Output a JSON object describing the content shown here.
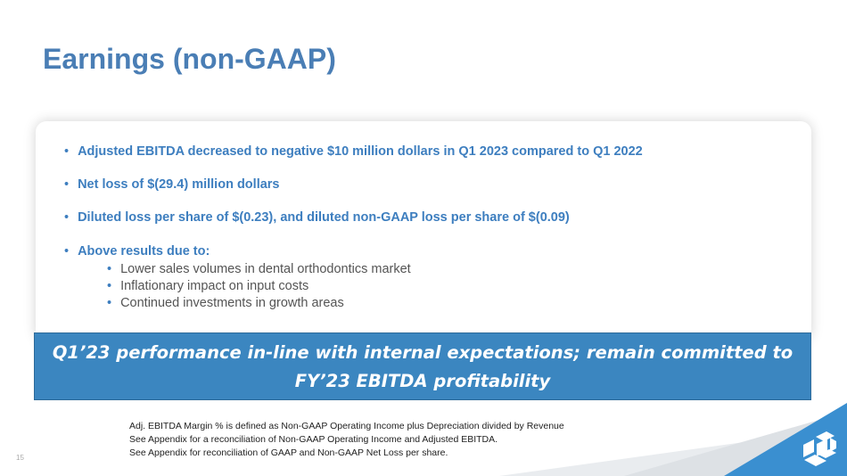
{
  "slide": {
    "title": "Earnings (non-GAAP)",
    "page_number": "15"
  },
  "bullets": [
    "Adjusted EBITDA decreased to negative $10 million dollars in Q1 2023 compared to Q1 2022",
    "Net loss of $(29.4) million dollars",
    "Diluted loss per share of $(0.23), and diluted non-GAAP loss per share of $(0.09)",
    "Above results due to:"
  ],
  "sub_bullets": [
    "Lower sales volumes in dental orthodontics market",
    "Inflationary impact on input costs",
    "Continued investments in growth areas"
  ],
  "banner": {
    "line1": "Q1’23 performance in-line with internal expectations; remain committed to",
    "line2": "FY’23 EBITDA profitability"
  },
  "footnotes": [
    "Adj. EBITDA Margin % is defined as Non-GAAP Operating Income plus Depreciation divided by Revenue",
    "See Appendix for a reconciliation of Non-GAAP Operating Income and Adjusted EBITDA.",
    "See Appendix for reconciliation of GAAP and Non-GAAP Net Loss per share."
  ],
  "colors": {
    "title": "#4a7eb5",
    "bullet_text": "#3d7ebf",
    "banner_bg": "#3b86c0",
    "logo_bg": "#3a8fd0"
  },
  "icons": {
    "logo": "company-logo-icon"
  }
}
